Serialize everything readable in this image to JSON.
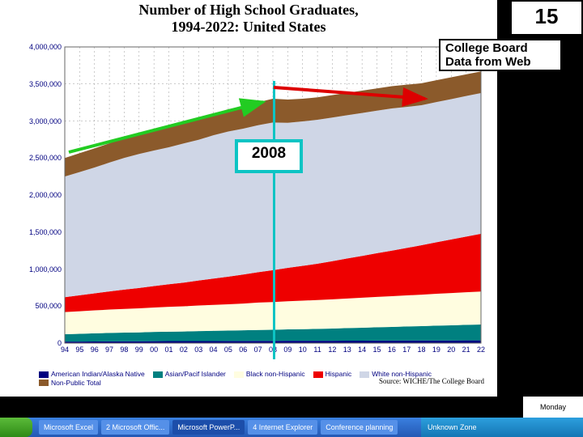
{
  "page_number": "15",
  "college_board_box": "College Board Data from Web",
  "marker_label": "2008",
  "chart": {
    "type": "area-stacked",
    "title_line1": "Number of High School Graduates,",
    "title_line2": "1994-2022:  United States",
    "source": "Source: WICHE/The College Board",
    "background_color": "#ffffff",
    "plot_background": "#ffffff",
    "grid_color": "#999999",
    "axis_font_color": "#000080",
    "border_color": "#000000",
    "xlabels": [
      "94",
      "95",
      "96",
      "97",
      "98",
      "99",
      "00",
      "01",
      "02",
      "03",
      "04",
      "05",
      "06",
      "07",
      "08",
      "09",
      "10",
      "11",
      "12",
      "13",
      "14",
      "15",
      "16",
      "17",
      "18",
      "19",
      "20",
      "21",
      "22"
    ],
    "ymin": 0,
    "ymax": 4000000,
    "ytick": 500000,
    "ylabels": [
      "0",
      "500,000",
      "1,000,000",
      "1,500,000",
      "2,000,000",
      "2,500,000",
      "3,000,000",
      "3,500,000",
      "4,000,000"
    ],
    "series": [
      {
        "name": "American Indian/Alaska Native",
        "color": "#000080",
        "values": [
          20000,
          21000,
          22000,
          23000,
          24000,
          25000,
          26000,
          27000,
          27000,
          28000,
          28000,
          29000,
          29000,
          30000,
          30000,
          31000,
          31000,
          32000,
          32000,
          33000,
          33000,
          34000,
          34000,
          35000,
          35000,
          36000,
          36000,
          37000,
          37000
        ]
      },
      {
        "name": "Asian/Pacif Islander",
        "color": "#008080",
        "values": [
          100000,
          105000,
          110000,
          115000,
          118000,
          120000,
          125000,
          128000,
          130000,
          135000,
          138000,
          140000,
          145000,
          148000,
          150000,
          155000,
          158000,
          160000,
          165000,
          170000,
          175000,
          180000,
          185000,
          190000,
          195000,
          200000,
          205000,
          210000,
          215000
        ]
      },
      {
        "name": "Black non-Hispanic",
        "color": "#fffde0",
        "values": [
          300000,
          305000,
          310000,
          315000,
          320000,
          325000,
          330000,
          335000,
          340000,
          345000,
          350000,
          355000,
          360000,
          370000,
          375000,
          380000,
          385000,
          390000,
          395000,
          400000,
          405000,
          410000,
          415000,
          420000,
          425000,
          430000,
          435000,
          440000,
          445000
        ]
      },
      {
        "name": "Hispanic",
        "color": "#ee0000",
        "values": [
          200000,
          215000,
          230000,
          245000,
          260000,
          275000,
          290000,
          305000,
          320000,
          338000,
          356000,
          374000,
          392000,
          410000,
          430000,
          450000,
          470000,
          490000,
          515000,
          540000,
          565000,
          590000,
          615000,
          640000,
          668000,
          696000,
          724000,
          752000,
          780000
        ]
      },
      {
        "name": "White non-Hispanic",
        "color": "#cfd6e6",
        "values": [
          1630000,
          1664000,
          1700000,
          1740000,
          1780000,
          1810000,
          1830000,
          1850000,
          1880000,
          1900000,
          1935000,
          1960000,
          1970000,
          1985000,
          1995000,
          1960000,
          1950000,
          1945000,
          1940000,
          1935000,
          1930000,
          1925000,
          1920000,
          1905000,
          1890000,
          1893000,
          1895000,
          1898000,
          1900000
        ]
      },
      {
        "name": "Non-Public Total",
        "color": "#8b5a2b",
        "values": [
          250000,
          255000,
          258000,
          260000,
          265000,
          270000,
          273000,
          276000,
          279000,
          282000,
          290000,
          300000,
          305000,
          310000,
          320000,
          314000,
          306000,
          303000,
          303000,
          302000,
          302000,
          301000,
          301000,
          300000,
          297000,
          295000,
          295000,
          293000,
          293000
        ]
      }
    ],
    "title_fontsize": 18,
    "axis_fontsize": 9,
    "legend_fontsize": 8.5
  },
  "annotations": {
    "green_arrow_color": "#22cc22",
    "red_arrow_color": "#dd0000",
    "teal_color": "#0dc4c4"
  },
  "taskbar": {
    "items": [
      "Microsoft Excel",
      "2 Microsoft Offic...",
      "Microsoft PowerP...",
      "4 Internet Explorer",
      "Conference planning"
    ],
    "tray_text": "Unknown Zone",
    "clock": "Monday"
  }
}
